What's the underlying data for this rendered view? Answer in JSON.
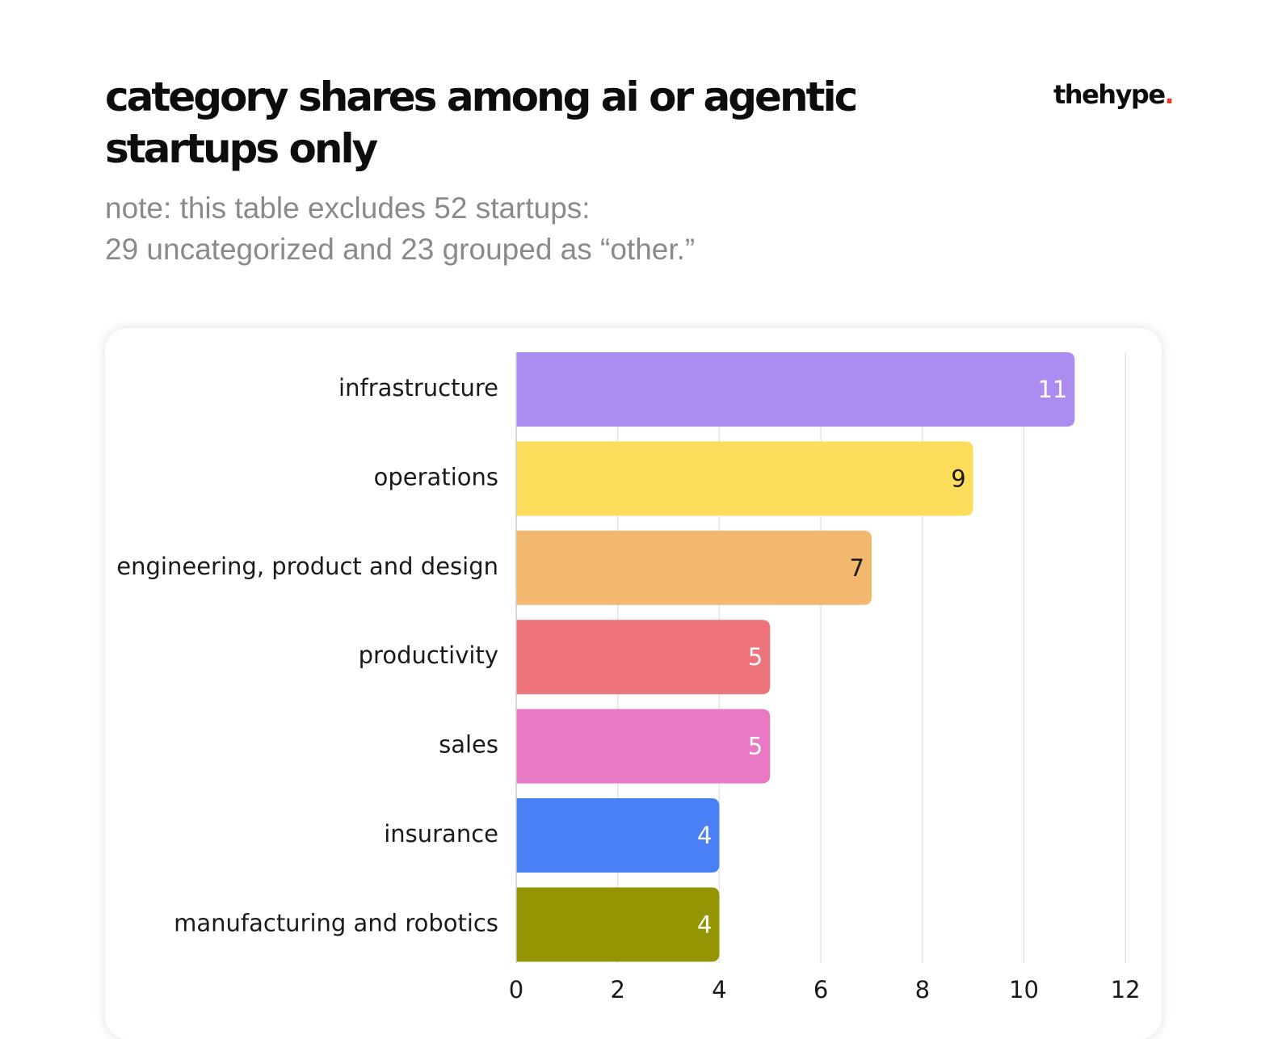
{
  "header": {
    "title": "category shares among ai or agentic startups only",
    "logo_text": "thehype",
    "logo_dot": ".",
    "note_line1": "note: this table excludes 52 startups:",
    "note_line2": "29 uncategorized and 23 grouped as “other.”"
  },
  "colors": {
    "logo_dot": "#e63b2e"
  },
  "chart_data": {
    "type": "bar",
    "orientation": "horizontal",
    "categories": [
      "infrastructure",
      "operations",
      "engineering, product and design",
      "productivity",
      "sales",
      "insurance",
      "manufacturing and robotics"
    ],
    "values": [
      11,
      9,
      7,
      5,
      5,
      4,
      4
    ],
    "bar_colors": [
      "#ad8cf2",
      "#fedd5c",
      "#f2b86e",
      "#ee737a",
      "#e879c5",
      "#4a80f5",
      "#959504"
    ],
    "label_colors": [
      "#ffffff",
      "#1a1a1a",
      "#1a1a1a",
      "#ffffff",
      "#ffffff",
      "#ffffff",
      "#ffffff"
    ],
    "xlim": [
      0,
      12
    ],
    "xticks": [
      0,
      2,
      4,
      6,
      8,
      10,
      12
    ],
    "grid": true,
    "data_labels": true
  }
}
